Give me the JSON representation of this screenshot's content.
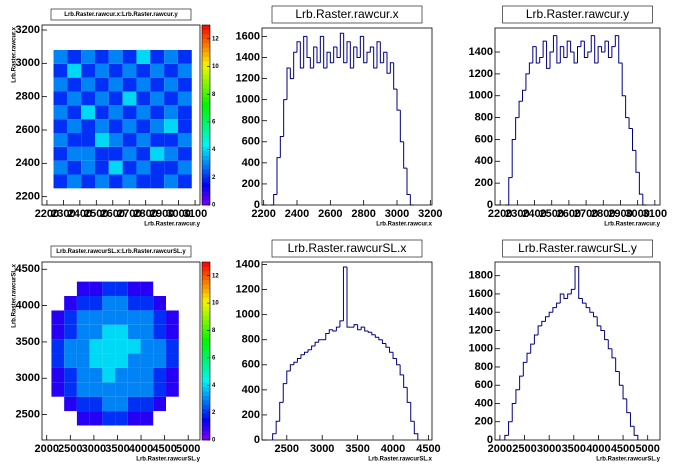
{
  "chart_data": [
    {
      "type": "heatmap",
      "title": "Lrb.Raster.rawcur.x:Lrb.Raster.rawcur.y",
      "x_label": "Lrb.Raster.rawcur.y",
      "y_label": "Lrb.Raster.rawcur.x",
      "xlim": [
        2170,
        3130
      ],
      "ylim": [
        2150,
        3230
      ],
      "xticks": [
        2200,
        2300,
        2400,
        2500,
        2600,
        2700,
        2800,
        2900,
        3000,
        3100
      ],
      "yticks": [
        2200,
        2400,
        2600,
        2800,
        3000,
        3200
      ],
      "xbins": [
        2240,
        2324,
        2408,
        2492,
        2576,
        2660,
        2744,
        2828,
        2912,
        2996,
        3080
      ],
      "ybins": [
        2250,
        2333,
        2416,
        2499,
        2582,
        2665,
        2748,
        2831,
        2914,
        2997,
        3080
      ],
      "z": [
        [
          2,
          3,
          2,
          3,
          2,
          3,
          2,
          2,
          3,
          2
        ],
        [
          3,
          2,
          3,
          2,
          4,
          2,
          3,
          2,
          2,
          3
        ],
        [
          2,
          3,
          3,
          2,
          2,
          3,
          2,
          4,
          3,
          2
        ],
        [
          3,
          2,
          2,
          4,
          3,
          2,
          3,
          2,
          2,
          3
        ],
        [
          2,
          3,
          2,
          3,
          2,
          3,
          2,
          3,
          4,
          2
        ],
        [
          3,
          2,
          4,
          2,
          3,
          2,
          3,
          2,
          3,
          2
        ],
        [
          2,
          3,
          2,
          3,
          2,
          4,
          2,
          3,
          2,
          3
        ],
        [
          3,
          2,
          3,
          2,
          3,
          2,
          3,
          2,
          3,
          2
        ],
        [
          2,
          4,
          2,
          3,
          2,
          3,
          2,
          3,
          2,
          3
        ],
        [
          3,
          2,
          3,
          2,
          3,
          2,
          4,
          2,
          3,
          2
        ]
      ],
      "zlim": [
        0,
        13
      ],
      "zticks": [
        0,
        2,
        4,
        6,
        8,
        10,
        12
      ]
    },
    {
      "type": "histogram",
      "title": "Lrb.Raster.rawcur.x",
      "x_label": "Lrb.Raster.rawcur.x",
      "color": "#000080",
      "xlim": [
        2190,
        3210
      ],
      "ylim": [
        0,
        1680
      ],
      "xticks": [
        2200,
        2400,
        2600,
        2800,
        3000,
        3200
      ],
      "yticks": [
        0,
        200,
        400,
        600,
        800,
        1000,
        1200,
        1400,
        1600
      ],
      "bins": [
        2240,
        2260,
        2280,
        2300,
        2320,
        2340,
        2360,
        2380,
        2400,
        2420,
        2440,
        2460,
        2480,
        2500,
        2520,
        2540,
        2560,
        2580,
        2600,
        2620,
        2640,
        2660,
        2680,
        2700,
        2720,
        2740,
        2760,
        2780,
        2800,
        2820,
        2840,
        2860,
        2880,
        2900,
        2920,
        2940,
        2960,
        2980,
        3000,
        3020,
        3040,
        3060,
        3080,
        3100
      ],
      "values": [
        0,
        100,
        450,
        650,
        1000,
        1300,
        1200,
        1450,
        1550,
        1300,
        1600,
        1400,
        1300,
        1500,
        1350,
        1600,
        1300,
        1450,
        1350,
        1500,
        1400,
        1630,
        1350,
        1550,
        1300,
        1500,
        1400,
        1600,
        1350,
        1450,
        1500,
        1300,
        1550,
        1350,
        1450,
        1250,
        1350,
        1100,
        900,
        600,
        350,
        100,
        0
      ]
    },
    {
      "type": "histogram",
      "title": "Lrb.Raster.rawcur.y",
      "x_label": "Lrb.Raster.rawcur.y",
      "color": "#000080",
      "xlim": [
        2170,
        3130
      ],
      "ylim": [
        0,
        1620
      ],
      "xticks": [
        2200,
        2300,
        2400,
        2500,
        2600,
        2700,
        2800,
        2900,
        3000,
        3100
      ],
      "yticks": [
        0,
        200,
        400,
        600,
        800,
        1000,
        1200,
        1400
      ],
      "bins": [
        2230,
        2250,
        2270,
        2290,
        2310,
        2330,
        2350,
        2370,
        2390,
        2410,
        2430,
        2450,
        2470,
        2490,
        2510,
        2530,
        2550,
        2570,
        2590,
        2610,
        2630,
        2650,
        2670,
        2690,
        2710,
        2730,
        2750,
        2770,
        2790,
        2810,
        2830,
        2850,
        2870,
        2890,
        2910,
        2930,
        2950,
        2970,
        2990,
        3010,
        3030,
        3050
      ],
      "values": [
        0,
        250,
        600,
        800,
        950,
        1050,
        1200,
        1300,
        1450,
        1300,
        1350,
        1500,
        1250,
        1400,
        1550,
        1300,
        1450,
        1350,
        1500,
        1400,
        1300,
        1450,
        1500,
        1350,
        1400,
        1550,
        1300,
        1450,
        1400,
        1500,
        1350,
        1450,
        1550,
        1300,
        1000,
        800,
        700,
        500,
        300,
        100,
        0
      ]
    },
    {
      "type": "heatmap",
      "title": "Lrb.Raster.rawcurSL.x:Lrb.Raster.rawcurSL.y",
      "x_label": "Lrb.Raster.rawcurSL.y",
      "y_label": "Lrb.Raster.rawcurSL.x",
      "xlim": [
        1900,
        5250
      ],
      "ylim": [
        2150,
        4600
      ],
      "xticks": [
        2000,
        2500,
        3000,
        3500,
        4000,
        4500,
        5000
      ],
      "yticks": [
        2500,
        3000,
        3500,
        4000,
        4500
      ],
      "xbins": [
        2100,
        2370,
        2640,
        2910,
        3180,
        3450,
        3720,
        3990,
        4260,
        4530,
        4800
      ],
      "ybins": [
        2350,
        2548,
        2746,
        2944,
        3142,
        3340,
        3538,
        3736,
        3934,
        4132,
        4330
      ],
      "z": [
        [
          0,
          0,
          1,
          1,
          2,
          2,
          1,
          1,
          0,
          0
        ],
        [
          0,
          1,
          2,
          2,
          3,
          3,
          2,
          2,
          1,
          0
        ],
        [
          1,
          2,
          3,
          3,
          3,
          3,
          3,
          3,
          2,
          1
        ],
        [
          1,
          2,
          3,
          3,
          4,
          3,
          3,
          3,
          2,
          1
        ],
        [
          2,
          3,
          3,
          4,
          4,
          4,
          3,
          3,
          3,
          2
        ],
        [
          2,
          3,
          3,
          4,
          4,
          4,
          4,
          3,
          3,
          2
        ],
        [
          1,
          2,
          3,
          3,
          4,
          4,
          3,
          3,
          2,
          1
        ],
        [
          1,
          2,
          3,
          3,
          3,
          3,
          3,
          3,
          2,
          1
        ],
        [
          0,
          1,
          2,
          2,
          3,
          3,
          2,
          2,
          1,
          0
        ],
        [
          0,
          0,
          1,
          1,
          2,
          2,
          1,
          1,
          0,
          0
        ]
      ],
      "zlim": [
        0,
        13
      ],
      "zticks": [
        0,
        2,
        4,
        6,
        8,
        10,
        12
      ]
    },
    {
      "type": "histogram",
      "title": "Lrb.Raster.rawcurSL.x",
      "x_label": "Lrb.Raster.rawcurSL.x",
      "color": "#000080",
      "xlim": [
        2150,
        4550
      ],
      "ylim": [
        0,
        1420
      ],
      "xticks": [
        2500,
        3000,
        3500,
        4000,
        4500
      ],
      "yticks": [
        0,
        200,
        400,
        600,
        800,
        1000,
        1200,
        1400
      ],
      "bins": [
        2300,
        2350,
        2400,
        2450,
        2500,
        2550,
        2600,
        2650,
        2700,
        2750,
        2800,
        2850,
        2900,
        2950,
        3000,
        3050,
        3100,
        3150,
        3200,
        3250,
        3300,
        3350,
        3400,
        3450,
        3500,
        3550,
        3600,
        3650,
        3700,
        3750,
        3800,
        3850,
        3900,
        3950,
        4000,
        4050,
        4100,
        4150,
        4200,
        4250,
        4300,
        4350
      ],
      "values": [
        50,
        150,
        300,
        450,
        550,
        600,
        620,
        650,
        680,
        700,
        720,
        750,
        780,
        800,
        800,
        850,
        880,
        870,
        900,
        950,
        1380,
        900,
        900,
        920,
        880,
        900,
        870,
        860,
        840,
        820,
        800,
        770,
        740,
        700,
        650,
        600,
        520,
        420,
        300,
        150,
        50
      ]
    },
    {
      "type": "histogram",
      "title": "Lrb.Raster.rawcurSL.y",
      "x_label": "Lrb.Raster.rawcurSL.y",
      "color": "#000080",
      "xlim": [
        1900,
        5250
      ],
      "ylim": [
        0,
        1950
      ],
      "xticks": [
        2000,
        2500,
        3000,
        3500,
        4000,
        4500,
        5000
      ],
      "yticks": [
        0,
        200,
        400,
        600,
        800,
        1000,
        1200,
        1400,
        1600,
        1800
      ],
      "bins": [
        2100,
        2175,
        2250,
        2325,
        2400,
        2475,
        2550,
        2625,
        2700,
        2775,
        2850,
        2925,
        3000,
        3075,
        3150,
        3225,
        3300,
        3375,
        3450,
        3525,
        3600,
        3675,
        3750,
        3825,
        3900,
        3975,
        4050,
        4125,
        4200,
        4275,
        4350,
        4425,
        4500,
        4575,
        4650,
        4725,
        4800
      ],
      "values": [
        50,
        200,
        400,
        550,
        700,
        850,
        950,
        1050,
        1150,
        1250,
        1300,
        1350,
        1400,
        1450,
        1500,
        1600,
        1550,
        1600,
        1650,
        1900,
        1550,
        1500,
        1450,
        1400,
        1350,
        1250,
        1200,
        1100,
        1000,
        900,
        750,
        600,
        450,
        300,
        150,
        50
      ]
    }
  ]
}
